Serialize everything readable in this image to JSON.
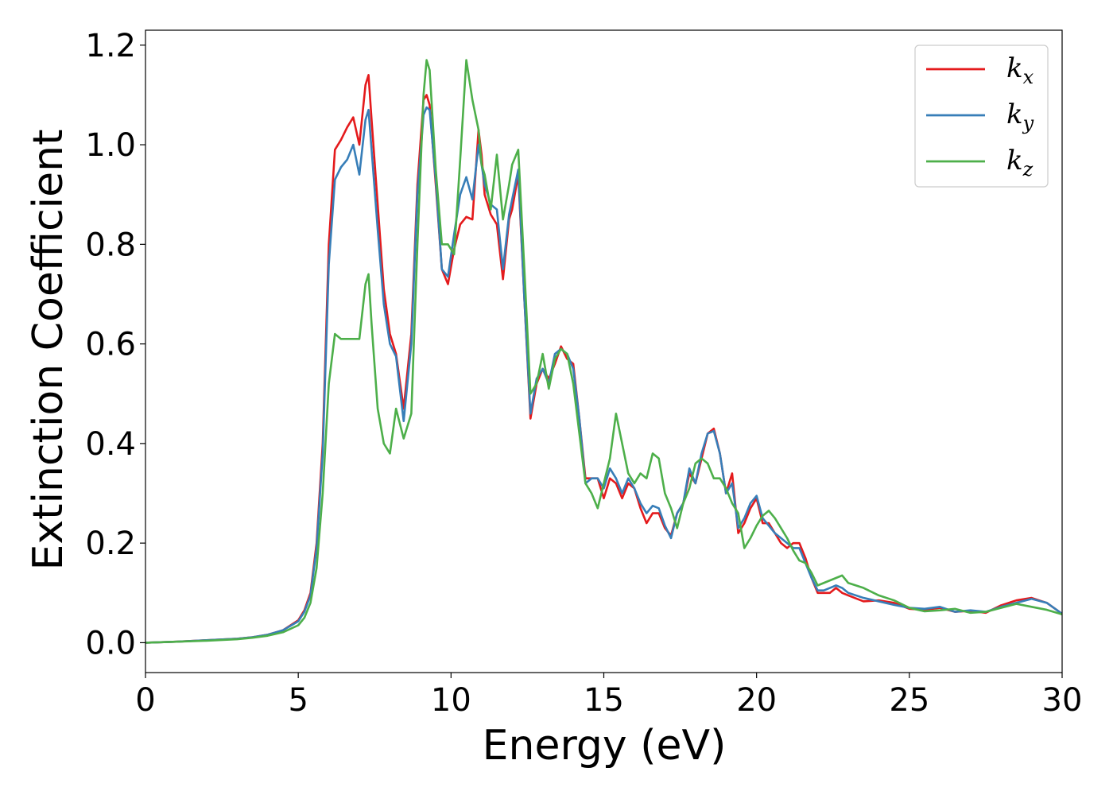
{
  "chart_data": {
    "type": "line",
    "xlabel": "Energy (eV)",
    "ylabel": "Extinction Coefficient",
    "xlim": [
      0,
      30
    ],
    "ylim": [
      -0.06,
      1.23
    ],
    "xticks": [
      0,
      5,
      10,
      15,
      20,
      25,
      30
    ],
    "xtick_labels": [
      "0",
      "5",
      "10",
      "15",
      "20",
      "25",
      "30"
    ],
    "yticks": [
      0.0,
      0.2,
      0.4,
      0.6,
      0.8,
      1.0,
      1.2
    ],
    "ytick_labels": [
      "0.0",
      "0.2",
      "0.4",
      "0.6",
      "0.8",
      "1.0",
      "1.2"
    ],
    "grid": false,
    "legend_position": "top-right",
    "series": [
      {
        "name": "kx",
        "legend_base": "k",
        "legend_sub": "x",
        "color": "#e41a1c",
        "x": [
          0,
          1,
          2,
          3,
          3.5,
          4,
          4.5,
          5,
          5.2,
          5.4,
          5.6,
          5.8,
          6.0,
          6.2,
          6.4,
          6.6,
          6.8,
          7.0,
          7.2,
          7.3,
          7.4,
          7.6,
          7.8,
          8.0,
          8.2,
          8.45,
          8.7,
          8.9,
          9.1,
          9.2,
          9.3,
          9.5,
          9.7,
          9.9,
          10.1,
          10.3,
          10.5,
          10.7,
          10.9,
          11.0,
          11.1,
          11.3,
          11.5,
          11.7,
          11.9,
          12.0,
          12.2,
          12.4,
          12.6,
          12.8,
          13.0,
          13.2,
          13.4,
          13.6,
          13.8,
          14.0,
          14.2,
          14.4,
          14.6,
          14.8,
          15.0,
          15.2,
          15.4,
          15.6,
          15.8,
          16.0,
          16.2,
          16.4,
          16.6,
          16.8,
          17.0,
          17.2,
          17.4,
          17.6,
          17.8,
          18.0,
          18.2,
          18.4,
          18.6,
          18.8,
          19.0,
          19.2,
          19.4,
          19.6,
          19.8,
          20.0,
          20.2,
          20.4,
          20.6,
          20.8,
          21.0,
          21.2,
          21.4,
          21.6,
          21.8,
          22.0,
          22.2,
          22.4,
          22.6,
          22.8,
          23.0,
          23.5,
          24.0,
          24.5,
          25.0,
          25.5,
          26.0,
          26.5,
          27.0,
          27.5,
          28.0,
          28.5,
          29.0,
          29.5,
          30.0
        ],
        "y": [
          0.0,
          0.002,
          0.005,
          0.008,
          0.011,
          0.016,
          0.025,
          0.045,
          0.065,
          0.1,
          0.2,
          0.4,
          0.8,
          0.99,
          1.01,
          1.035,
          1.055,
          1.0,
          1.12,
          1.14,
          1.05,
          0.88,
          0.71,
          0.62,
          0.58,
          0.47,
          0.62,
          0.92,
          1.09,
          1.1,
          1.08,
          0.92,
          0.75,
          0.72,
          0.79,
          0.84,
          0.855,
          0.85,
          1.03,
          0.98,
          0.9,
          0.86,
          0.84,
          0.73,
          0.85,
          0.87,
          0.94,
          0.69,
          0.45,
          0.52,
          0.55,
          0.53,
          0.56,
          0.595,
          0.57,
          0.56,
          0.45,
          0.33,
          0.33,
          0.33,
          0.29,
          0.33,
          0.32,
          0.29,
          0.32,
          0.31,
          0.27,
          0.24,
          0.26,
          0.26,
          0.23,
          0.215,
          0.26,
          0.28,
          0.34,
          0.32,
          0.37,
          0.42,
          0.43,
          0.38,
          0.3,
          0.34,
          0.22,
          0.24,
          0.27,
          0.29,
          0.24,
          0.24,
          0.22,
          0.2,
          0.19,
          0.2,
          0.2,
          0.17,
          0.13,
          0.1,
          0.1,
          0.1,
          0.11,
          0.1,
          0.095,
          0.083,
          0.085,
          0.08,
          0.068,
          0.066,
          0.07,
          0.062,
          0.064,
          0.06,
          0.075,
          0.085,
          0.09,
          0.08,
          0.058
        ]
      },
      {
        "name": "ky",
        "legend_base": "k",
        "legend_sub": "y",
        "color": "#377eb8",
        "x": [
          0,
          1,
          2,
          3,
          3.5,
          4,
          4.5,
          5,
          5.2,
          5.4,
          5.6,
          5.8,
          6.0,
          6.2,
          6.4,
          6.6,
          6.8,
          7.0,
          7.2,
          7.3,
          7.4,
          7.6,
          7.8,
          8.0,
          8.2,
          8.45,
          8.7,
          8.9,
          9.1,
          9.2,
          9.3,
          9.5,
          9.7,
          9.9,
          10.1,
          10.3,
          10.5,
          10.7,
          10.9,
          11.0,
          11.1,
          11.3,
          11.5,
          11.7,
          11.9,
          12.0,
          12.2,
          12.4,
          12.6,
          12.8,
          13.0,
          13.2,
          13.4,
          13.6,
          13.8,
          14.0,
          14.2,
          14.4,
          14.6,
          14.8,
          15.0,
          15.2,
          15.4,
          15.6,
          15.8,
          16.0,
          16.2,
          16.4,
          16.6,
          16.8,
          17.0,
          17.2,
          17.4,
          17.6,
          17.8,
          18.0,
          18.2,
          18.4,
          18.6,
          18.8,
          19.0,
          19.2,
          19.4,
          19.6,
          19.8,
          20.0,
          20.2,
          20.4,
          20.6,
          20.8,
          21.0,
          21.2,
          21.4,
          21.6,
          21.8,
          22.0,
          22.2,
          22.4,
          22.6,
          22.8,
          23.0,
          23.5,
          24.0,
          24.5,
          25.0,
          25.5,
          26.0,
          26.5,
          27.0,
          27.5,
          28.0,
          28.5,
          29.0,
          29.5,
          30.0
        ],
        "y": [
          0.0,
          0.002,
          0.005,
          0.008,
          0.011,
          0.016,
          0.025,
          0.043,
          0.062,
          0.095,
          0.19,
          0.38,
          0.76,
          0.93,
          0.955,
          0.97,
          1.0,
          0.94,
          1.05,
          1.07,
          0.99,
          0.83,
          0.68,
          0.6,
          0.575,
          0.445,
          0.6,
          0.9,
          1.06,
          1.075,
          1.07,
          0.93,
          0.75,
          0.735,
          0.82,
          0.9,
          0.935,
          0.89,
          1.0,
          0.96,
          0.92,
          0.88,
          0.87,
          0.75,
          0.86,
          0.89,
          0.95,
          0.69,
          0.46,
          0.53,
          0.55,
          0.52,
          0.58,
          0.59,
          0.58,
          0.55,
          0.45,
          0.32,
          0.33,
          0.33,
          0.31,
          0.35,
          0.33,
          0.3,
          0.33,
          0.31,
          0.28,
          0.26,
          0.275,
          0.27,
          0.235,
          0.21,
          0.26,
          0.28,
          0.35,
          0.32,
          0.38,
          0.42,
          0.425,
          0.38,
          0.3,
          0.32,
          0.23,
          0.25,
          0.28,
          0.295,
          0.25,
          0.235,
          0.22,
          0.21,
          0.2,
          0.19,
          0.19,
          0.16,
          0.13,
          0.105,
          0.105,
          0.11,
          0.115,
          0.11,
          0.1,
          0.09,
          0.083,
          0.076,
          0.07,
          0.068,
          0.072,
          0.062,
          0.065,
          0.062,
          0.072,
          0.08,
          0.088,
          0.08,
          0.058
        ]
      },
      {
        "name": "kz",
        "legend_base": "k",
        "legend_sub": "z",
        "color": "#4daf4a",
        "x": [
          0,
          1,
          2,
          3,
          3.5,
          4,
          4.5,
          5,
          5.2,
          5.4,
          5.6,
          5.8,
          6.0,
          6.2,
          6.4,
          6.6,
          6.8,
          7.0,
          7.2,
          7.3,
          7.4,
          7.6,
          7.8,
          8.0,
          8.2,
          8.45,
          8.7,
          8.9,
          9.1,
          9.2,
          9.3,
          9.5,
          9.7,
          9.9,
          10.1,
          10.3,
          10.5,
          10.7,
          10.9,
          11.0,
          11.1,
          11.3,
          11.5,
          11.7,
          11.9,
          12.0,
          12.2,
          12.4,
          12.6,
          12.8,
          13.0,
          13.2,
          13.4,
          13.6,
          13.8,
          14.0,
          14.2,
          14.4,
          14.6,
          14.8,
          15.0,
          15.2,
          15.4,
          15.6,
          15.8,
          16.0,
          16.2,
          16.4,
          16.6,
          16.8,
          17.0,
          17.2,
          17.4,
          17.6,
          17.8,
          18.0,
          18.2,
          18.4,
          18.6,
          18.8,
          19.0,
          19.2,
          19.4,
          19.6,
          19.8,
          20.0,
          20.2,
          20.4,
          20.6,
          20.8,
          21.0,
          21.2,
          21.4,
          21.6,
          21.8,
          22.0,
          22.2,
          22.4,
          22.6,
          22.8,
          23.0,
          23.5,
          24.0,
          24.5,
          25.0,
          25.5,
          26.0,
          26.5,
          27.0,
          27.5,
          28.0,
          28.5,
          29.0,
          29.5,
          30.0
        ],
        "y": [
          0.0,
          0.002,
          0.004,
          0.007,
          0.01,
          0.014,
          0.021,
          0.035,
          0.05,
          0.08,
          0.15,
          0.3,
          0.52,
          0.62,
          0.61,
          0.61,
          0.61,
          0.61,
          0.72,
          0.74,
          0.64,
          0.47,
          0.4,
          0.38,
          0.47,
          0.41,
          0.46,
          0.8,
          1.1,
          1.17,
          1.15,
          0.95,
          0.8,
          0.8,
          0.78,
          0.97,
          1.17,
          1.09,
          1.03,
          0.96,
          0.94,
          0.87,
          0.98,
          0.85,
          0.92,
          0.96,
          0.99,
          0.75,
          0.5,
          0.52,
          0.58,
          0.51,
          0.57,
          0.59,
          0.58,
          0.52,
          0.42,
          0.32,
          0.3,
          0.27,
          0.32,
          0.37,
          0.46,
          0.4,
          0.34,
          0.32,
          0.34,
          0.33,
          0.38,
          0.37,
          0.3,
          0.27,
          0.23,
          0.28,
          0.31,
          0.36,
          0.37,
          0.36,
          0.33,
          0.33,
          0.31,
          0.28,
          0.26,
          0.19,
          0.21,
          0.235,
          0.255,
          0.265,
          0.25,
          0.23,
          0.21,
          0.185,
          0.165,
          0.16,
          0.14,
          0.115,
          0.12,
          0.125,
          0.13,
          0.135,
          0.12,
          0.11,
          0.095,
          0.085,
          0.07,
          0.063,
          0.065,
          0.068,
          0.06,
          0.062,
          0.07,
          0.078,
          0.072,
          0.066,
          0.057
        ]
      }
    ]
  }
}
